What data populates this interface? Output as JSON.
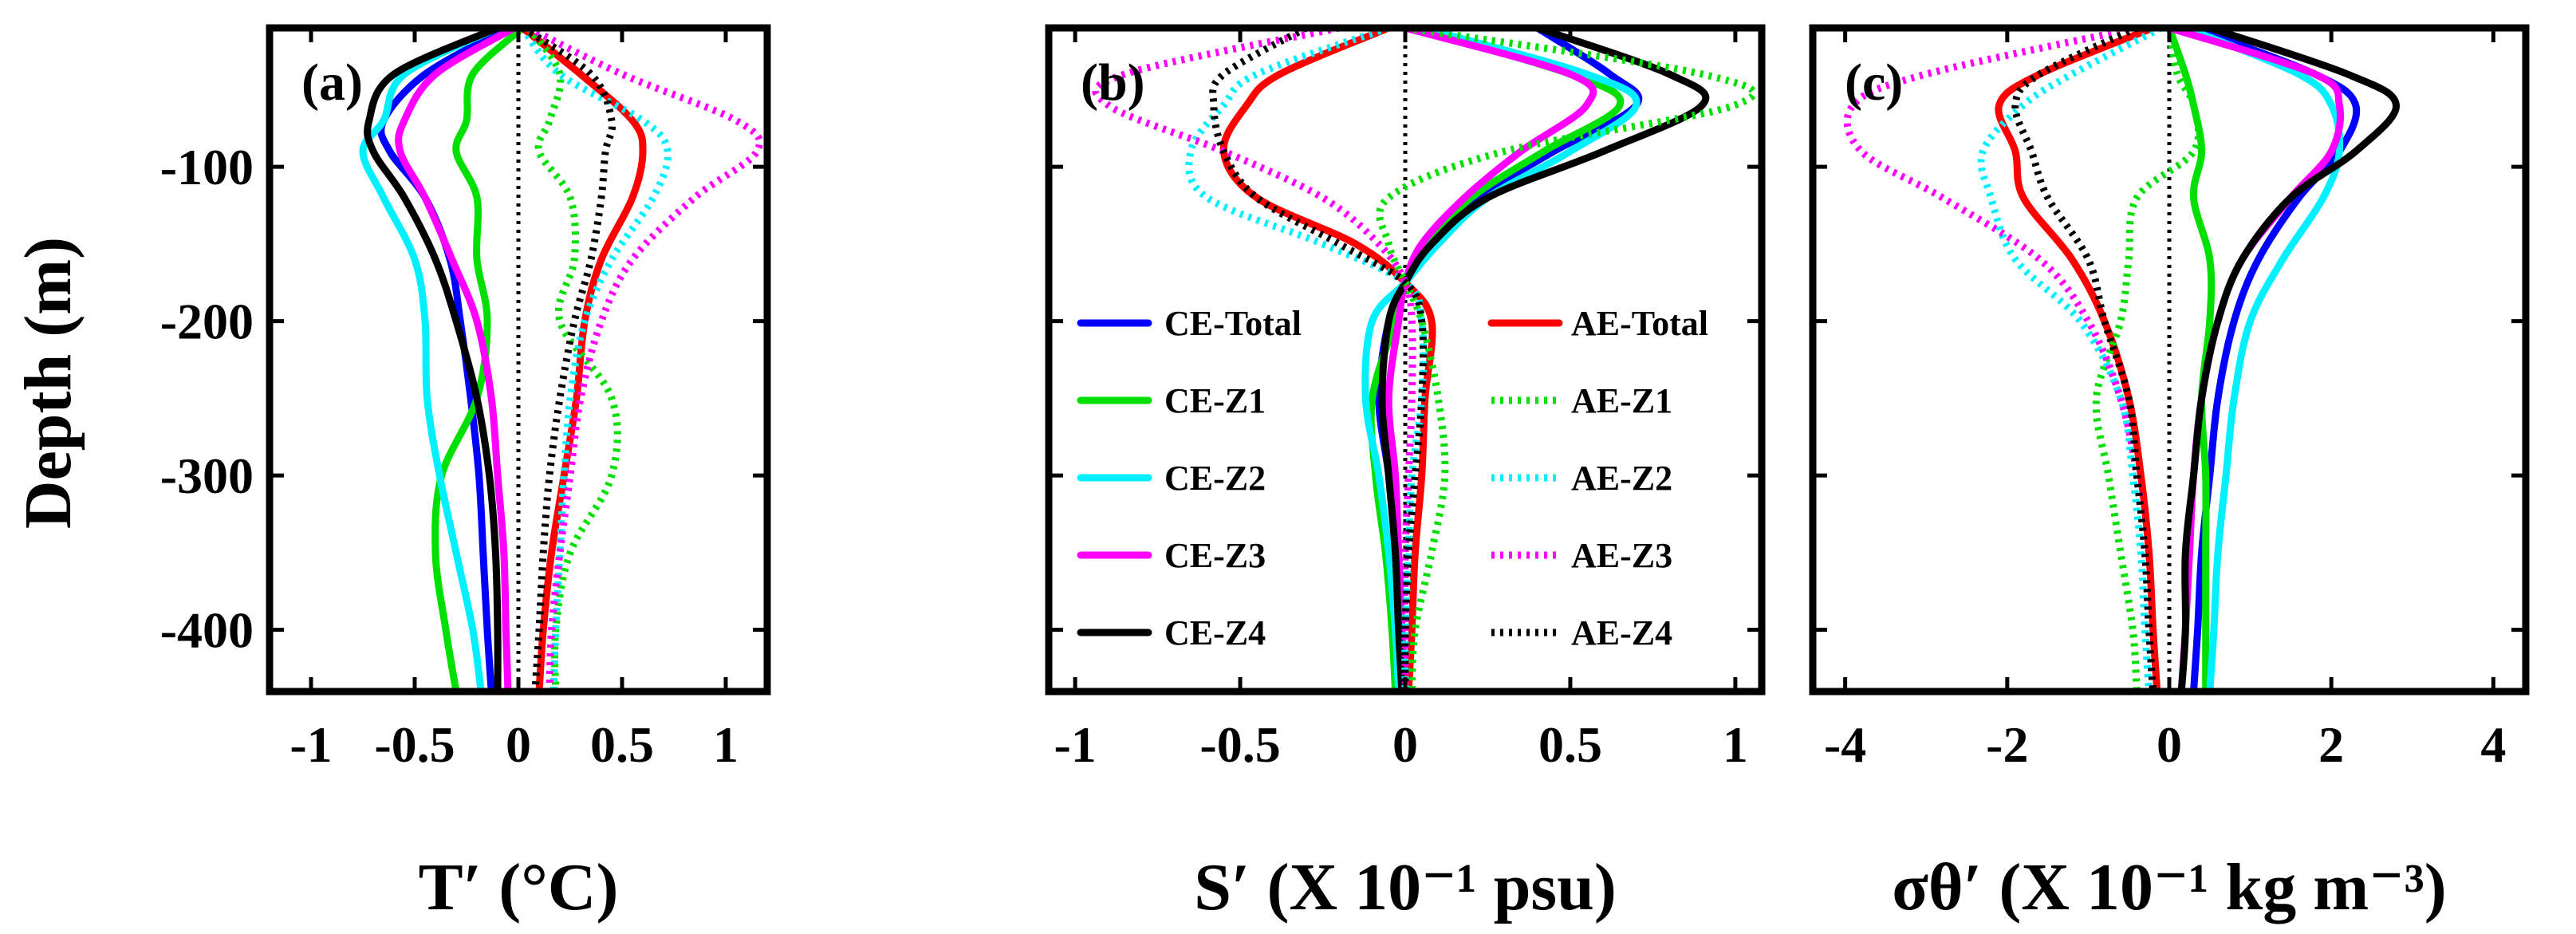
{
  "colors": {
    "Total": "#0000ff",
    "Z1": "#00e000",
    "Z2": "#00f0ff",
    "Z3": "#ff00ff",
    "Z4": "#000000",
    "AE-Total": "#ff0000"
  },
  "y_axis": {
    "label": "Depth (m)",
    "ticks": [
      -100,
      -200,
      -300,
      -400
    ],
    "tick_labels": [
      "-100",
      "-200",
      "-300",
      "-400"
    ]
  },
  "legend": {
    "left": [
      {
        "name": "CE-Total",
        "color": "#0000ff",
        "style": "solid"
      },
      {
        "name": "CE-Z1",
        "color": "#00e000",
        "style": "solid"
      },
      {
        "name": "CE-Z2",
        "color": "#00f0ff",
        "style": "solid"
      },
      {
        "name": "CE-Z3",
        "color": "#ff00ff",
        "style": "solid"
      },
      {
        "name": "CE-Z4",
        "color": "#000000",
        "style": "solid"
      }
    ],
    "right": [
      {
        "name": "AE-Total",
        "color": "#ff0000",
        "style": "solid"
      },
      {
        "name": "AE-Z1",
        "color": "#00e000",
        "style": "dotted"
      },
      {
        "name": "AE-Z2",
        "color": "#00f0ff",
        "style": "dotted"
      },
      {
        "name": "AE-Z3",
        "color": "#ff00ff",
        "style": "dotted"
      },
      {
        "name": "AE-Z4",
        "color": "#000000",
        "style": "dotted"
      }
    ]
  },
  "chart_data": [
    {
      "type": "line",
      "panel_label": "(a)",
      "title": "",
      "xlabel": "T′ (°C)",
      "ylabel": "Depth (m)",
      "xlim": [
        -1.2,
        1.2
      ],
      "ylim": [
        -440,
        -10
      ],
      "xticks": [
        -1,
        -0.5,
        0,
        0.5,
        1
      ],
      "xtick_labels": [
        "-1",
        "-0.5",
        "0",
        "0.5",
        "1"
      ],
      "depth": [
        -10,
        -40,
        -70,
        -90,
        -120,
        -160,
        -200,
        -250,
        -300,
        -350,
        -400,
        -440
      ],
      "series": [
        {
          "name": "CE-Total",
          "style": "solid",
          "color": "#0000ff",
          "values": [
            -0.05,
            -0.45,
            -0.65,
            -0.62,
            -0.45,
            -0.33,
            -0.28,
            -0.23,
            -0.19,
            -0.17,
            -0.15,
            -0.13
          ]
        },
        {
          "name": "CE-Z1",
          "style": "solid",
          "color": "#00e000",
          "values": [
            0.02,
            -0.22,
            -0.25,
            -0.3,
            -0.2,
            -0.2,
            -0.15,
            -0.2,
            -0.37,
            -0.4,
            -0.35,
            -0.3
          ]
        },
        {
          "name": "CE-Z2",
          "style": "solid",
          "color": "#00f0ff",
          "values": [
            -0.1,
            -0.55,
            -0.65,
            -0.75,
            -0.65,
            -0.5,
            -0.45,
            -0.44,
            -0.38,
            -0.3,
            -0.22,
            -0.18
          ]
        },
        {
          "name": "CE-Z3",
          "style": "solid",
          "color": "#ff00ff",
          "values": [
            -0.02,
            -0.4,
            -0.55,
            -0.57,
            -0.45,
            -0.32,
            -0.2,
            -0.13,
            -0.1,
            -0.07,
            -0.06,
            -0.05
          ]
        },
        {
          "name": "CE-Z4",
          "style": "solid",
          "color": "#000000",
          "values": [
            -0.1,
            -0.6,
            -0.72,
            -0.7,
            -0.55,
            -0.4,
            -0.3,
            -0.2,
            -0.14,
            -0.11,
            -0.1,
            -0.1
          ]
        },
        {
          "name": "AE-Total",
          "style": "solid",
          "color": "#ff0000",
          "values": [
            0.02,
            0.3,
            0.55,
            0.6,
            0.55,
            0.4,
            0.32,
            0.28,
            0.22,
            0.16,
            0.12,
            0.1
          ]
        },
        {
          "name": "AE-Z1",
          "style": "dotted",
          "color": "#00e000",
          "values": [
            0.05,
            0.2,
            0.15,
            0.1,
            0.25,
            0.27,
            0.2,
            0.45,
            0.45,
            0.25,
            0.18,
            0.18
          ]
        },
        {
          "name": "AE-Z2",
          "style": "dotted",
          "color": "#00f0ff",
          "values": [
            0.02,
            0.2,
            0.6,
            0.72,
            0.65,
            0.45,
            0.32,
            0.25,
            0.22,
            0.2,
            0.18,
            0.17
          ]
        },
        {
          "name": "AE-Z3",
          "style": "dotted",
          "color": "#ff00ff",
          "values": [
            0.05,
            0.5,
            1.05,
            1.15,
            0.85,
            0.55,
            0.4,
            0.3,
            0.25,
            0.2,
            0.16,
            0.15
          ]
        },
        {
          "name": "AE-Z4",
          "style": "dotted",
          "color": "#000000",
          "values": [
            0.02,
            0.35,
            0.45,
            0.42,
            0.4,
            0.35,
            0.27,
            0.2,
            0.15,
            0.12,
            0.1,
            0.08
          ]
        }
      ]
    },
    {
      "type": "line",
      "panel_label": "(b)",
      "title": "",
      "xlabel": "S′ (X 10⁻¹ psu)",
      "ylabel": "",
      "xlim": [
        -1.08,
        1.08
      ],
      "ylim": [
        -440,
        -10
      ],
      "xticks": [
        -1,
        -0.5,
        0,
        0.5,
        1
      ],
      "xtick_labels": [
        "-1",
        "-0.5",
        "0",
        "0.5",
        "1"
      ],
      "depth": [
        -10,
        -40,
        -60,
        -90,
        -120,
        -150,
        -175,
        -200,
        -250,
        -300,
        -350,
        -400,
        -440
      ],
      "series": [
        {
          "name": "CE-Total",
          "style": "solid",
          "color": "#0000ff",
          "values": [
            0.4,
            0.62,
            0.7,
            0.45,
            0.22,
            0.08,
            0.0,
            -0.05,
            -0.08,
            -0.05,
            -0.03,
            -0.02,
            -0.02
          ]
        },
        {
          "name": "CE-Z1",
          "style": "solid",
          "color": "#00e000",
          "values": [
            0.02,
            0.5,
            0.65,
            0.42,
            0.2,
            0.07,
            0.0,
            -0.03,
            -0.1,
            -0.09,
            -0.06,
            -0.04,
            -0.03
          ]
        },
        {
          "name": "CE-Z2",
          "style": "solid",
          "color": "#00f0ff",
          "values": [
            0.05,
            0.55,
            0.7,
            0.5,
            0.25,
            0.1,
            0.0,
            -0.1,
            -0.12,
            -0.08,
            -0.05,
            -0.03,
            -0.02
          ]
        },
        {
          "name": "CE-Z3",
          "style": "solid",
          "color": "#ff00ff",
          "values": [
            0.0,
            0.5,
            0.55,
            0.35,
            0.18,
            0.05,
            0.0,
            -0.02,
            -0.05,
            -0.03,
            -0.02,
            -0.01,
            0.0
          ]
        },
        {
          "name": "CE-Z4",
          "style": "solid",
          "color": "#000000",
          "values": [
            0.4,
            0.8,
            0.9,
            0.6,
            0.25,
            0.08,
            0.0,
            -0.05,
            -0.07,
            -0.05,
            -0.03,
            -0.02,
            -0.01
          ]
        },
        {
          "name": "AE-Total",
          "style": "solid",
          "color": "#ff0000",
          "values": [
            -0.05,
            -0.38,
            -0.48,
            -0.55,
            -0.45,
            -0.15,
            0.0,
            0.08,
            0.06,
            0.05,
            0.03,
            0.02,
            0.01
          ]
        },
        {
          "name": "AE-Z1",
          "style": "dotted",
          "color": "#00e000",
          "values": [
            0.0,
            0.9,
            1.0,
            0.3,
            -0.05,
            -0.05,
            0.0,
            0.05,
            0.1,
            0.12,
            0.08,
            0.03,
            0.02
          ]
        },
        {
          "name": "AE-Z2",
          "style": "dotted",
          "color": "#00f0ff",
          "values": [
            -0.05,
            -0.45,
            -0.55,
            -0.65,
            -0.6,
            -0.25,
            0.0,
            0.05,
            0.05,
            0.02,
            0.01,
            0.0,
            0.0
          ]
        },
        {
          "name": "AE-Z3",
          "style": "dotted",
          "color": "#ff00ff",
          "values": [
            -0.2,
            -0.85,
            -0.9,
            -0.55,
            -0.25,
            -0.08,
            0.0,
            0.02,
            0.02,
            0.01,
            0.0,
            0.0,
            0.0
          ]
        },
        {
          "name": "AE-Z4",
          "style": "dotted",
          "color": "#000000",
          "values": [
            -0.3,
            -0.55,
            -0.58,
            -0.55,
            -0.45,
            -0.2,
            0.0,
            0.05,
            0.05,
            0.03,
            0.01,
            0.0,
            0.0
          ]
        }
      ]
    },
    {
      "type": "line",
      "panel_label": "(c)",
      "title": "",
      "xlabel": "σθ′ (X 10⁻¹ kg m⁻³)",
      "ylabel": "",
      "xlim": [
        -4.4,
        4.4
      ],
      "ylim": [
        -440,
        -10
      ],
      "xticks": [
        -4,
        -2,
        0,
        2,
        4
      ],
      "xtick_labels": [
        "-4",
        "-2",
        "0",
        "2",
        "4"
      ],
      "depth": [
        -10,
        -40,
        -60,
        -90,
        -120,
        -160,
        -200,
        -250,
        -300,
        -350,
        -400,
        -440
      ],
      "series": [
        {
          "name": "CE-Total",
          "style": "solid",
          "color": "#0000ff",
          "values": [
            0.3,
            1.8,
            2.3,
            2.1,
            1.6,
            1.1,
            0.8,
            0.6,
            0.5,
            0.4,
            0.35,
            0.3
          ]
        },
        {
          "name": "CE-Z1",
          "style": "solid",
          "color": "#00e000",
          "values": [
            0.0,
            0.2,
            0.3,
            0.4,
            0.3,
            0.5,
            0.5,
            0.4,
            0.45,
            0.45,
            0.45,
            0.45
          ]
        },
        {
          "name": "CE-Z2",
          "style": "solid",
          "color": "#00f0ff",
          "values": [
            0.2,
            1.6,
            2.0,
            2.1,
            1.9,
            1.4,
            1.0,
            0.8,
            0.7,
            0.6,
            0.55,
            0.5
          ]
        },
        {
          "name": "CE-Z3",
          "style": "solid",
          "color": "#ff00ff",
          "values": [
            0.0,
            1.8,
            2.1,
            2.0,
            1.5,
            0.9,
            0.6,
            0.4,
            0.3,
            0.25,
            0.2,
            0.15
          ]
        },
        {
          "name": "CE-Z4",
          "style": "solid",
          "color": "#000000",
          "values": [
            0.5,
            2.2,
            2.8,
            2.3,
            1.5,
            0.9,
            0.6,
            0.4,
            0.3,
            0.2,
            0.2,
            0.15
          ]
        },
        {
          "name": "AE-Total",
          "style": "solid",
          "color": "#ff0000",
          "values": [
            -0.2,
            -1.6,
            -2.1,
            -1.9,
            -1.8,
            -1.2,
            -0.8,
            -0.5,
            -0.35,
            -0.25,
            -0.2,
            -0.15
          ]
        },
        {
          "name": "AE-Z1",
          "style": "dotted",
          "color": "#00e000",
          "values": [
            0.0,
            0.1,
            0.3,
            0.3,
            -0.4,
            -0.5,
            -0.6,
            -0.9,
            -0.75,
            -0.6,
            -0.45,
            -0.4
          ]
        },
        {
          "name": "AE-Z2",
          "style": "dotted",
          "color": "#00f0ff",
          "values": [
            -0.1,
            -1.2,
            -1.8,
            -2.3,
            -2.2,
            -1.9,
            -1.1,
            -0.6,
            -0.45,
            -0.35,
            -0.3,
            -0.25
          ]
        },
        {
          "name": "AE-Z3",
          "style": "dotted",
          "color": "#ff00ff",
          "values": [
            -0.4,
            -3.0,
            -3.9,
            -3.8,
            -2.8,
            -1.6,
            -1.0,
            -0.6,
            -0.4,
            -0.3,
            -0.25,
            -0.2
          ]
        },
        {
          "name": "AE-Z4",
          "style": "dotted",
          "color": "#000000",
          "values": [
            -0.4,
            -1.6,
            -1.9,
            -1.7,
            -1.5,
            -1.0,
            -0.8,
            -0.5,
            -0.4,
            -0.3,
            -0.25,
            -0.2
          ]
        }
      ]
    }
  ]
}
